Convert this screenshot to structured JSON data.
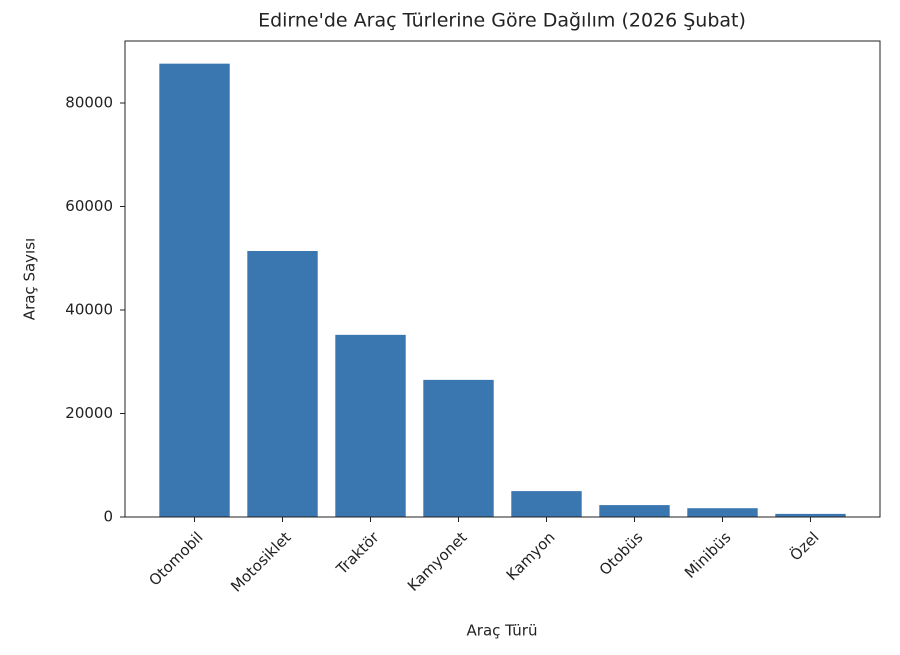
{
  "chart_data": {
    "type": "bar",
    "title": "Edirne'de Araç Türlerine Göre Dağılım (2026 Şubat)",
    "x_label": "Araç Türü",
    "y_label": "Araç Sayısı",
    "categories": [
      "Otomobil",
      "Motosiklet",
      "Traktör",
      "Kamyonet",
      "Kamyon",
      "Otobüs",
      "Minibüs",
      "Özel"
    ],
    "values": [
      87600,
      51400,
      35200,
      26500,
      5000,
      2300,
      1700,
      600
    ],
    "color": "#3a76b0",
    "ylim": [
      0,
      91980
    ],
    "yticks": [
      0,
      20000,
      40000,
      60000,
      80000
    ],
    "grid": false
  }
}
